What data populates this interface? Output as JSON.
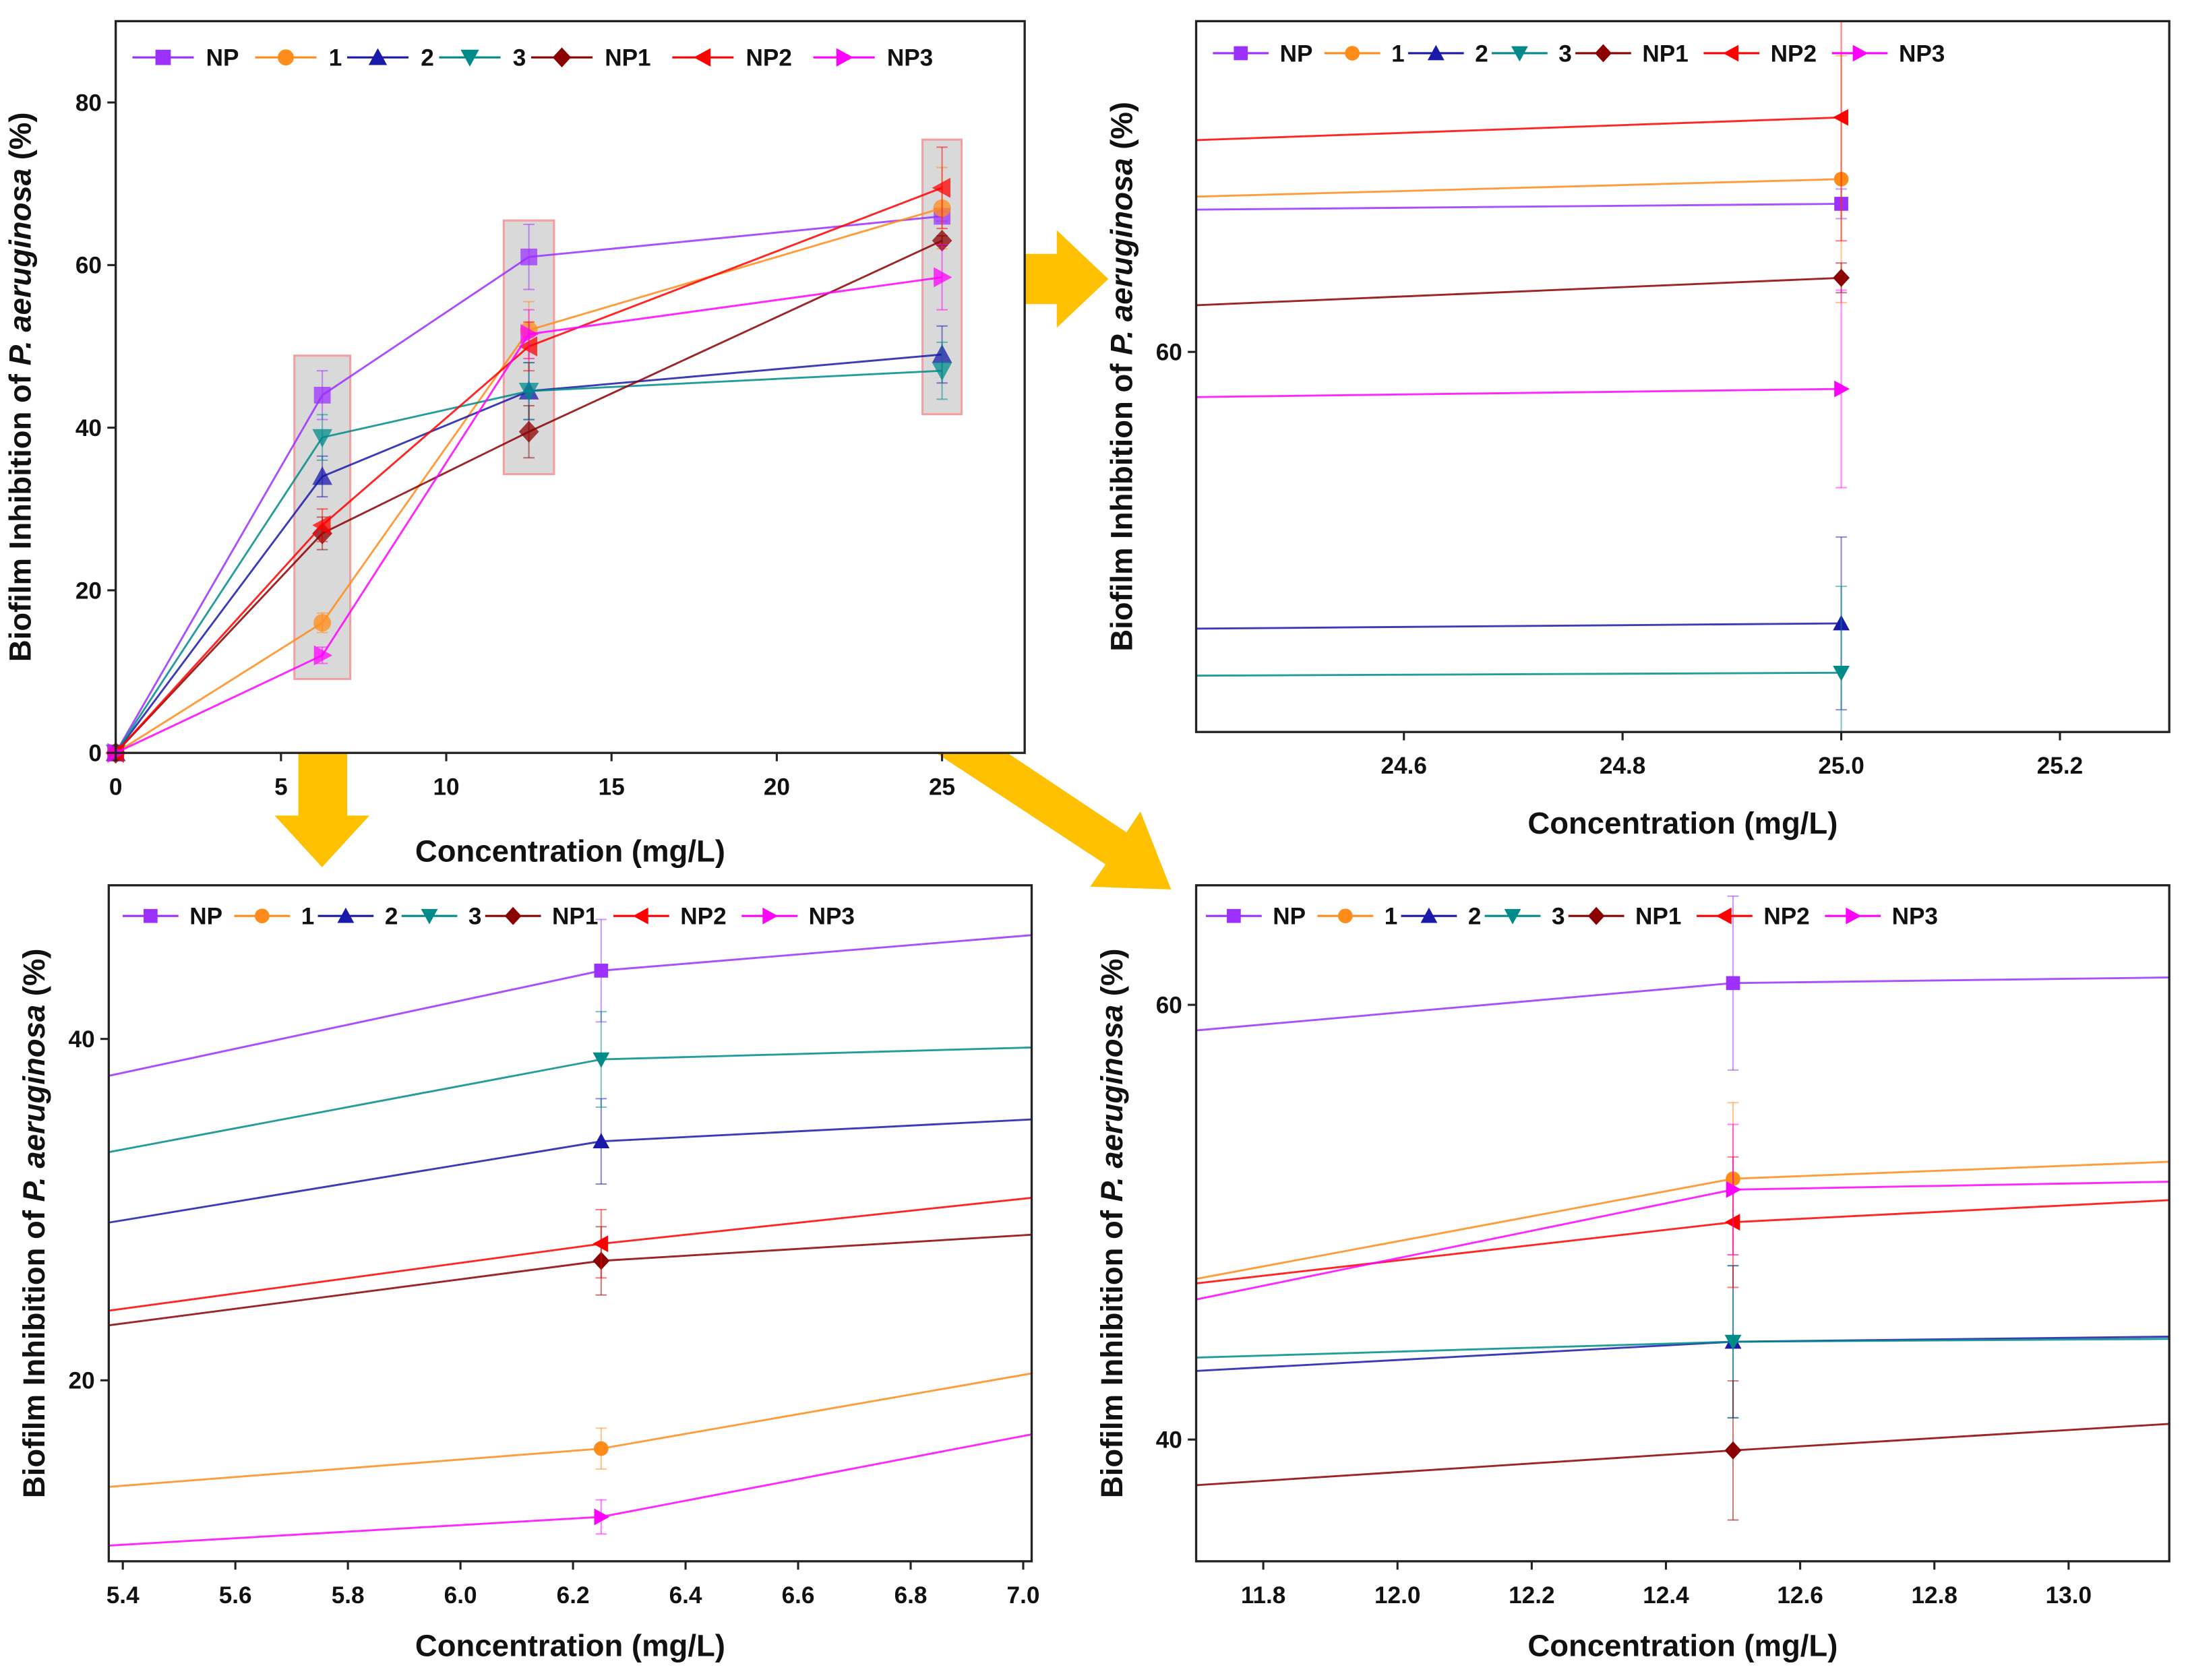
{
  "chart_data": {
    "type": "line",
    "x": [
      0,
      6.25,
      12.5,
      25
    ],
    "series": [
      {
        "name": "NP",
        "values": [
          0,
          44,
          61,
          66
        ],
        "err": [
          0,
          3,
          4,
          0.6
        ],
        "color": "#9b30ff",
        "marker": "square"
      },
      {
        "name": "1",
        "values": [
          0,
          16,
          52,
          67
        ],
        "err": [
          0,
          1.2,
          3.5,
          5
        ],
        "color": "#ff8c1a",
        "marker": "circle"
      },
      {
        "name": "2",
        "values": [
          0,
          34,
          44.5,
          49
        ],
        "err": [
          0,
          2.5,
          3.5,
          3.5
        ],
        "color": "#1a1aaa",
        "marker": "triangle-up"
      },
      {
        "name": "3",
        "values": [
          0,
          38.8,
          44.5,
          47
        ],
        "err": [
          0,
          2.8,
          3.5,
          3.5
        ],
        "color": "#008b8b",
        "marker": "triangle-down"
      },
      {
        "name": "NP1",
        "values": [
          0,
          27,
          39.5,
          63
        ],
        "err": [
          0,
          2,
          3.2,
          0.6
        ],
        "color": "#8b0000",
        "marker": "diamond"
      },
      {
        "name": "NP2",
        "values": [
          0,
          28,
          50,
          69.5
        ],
        "err": [
          0,
          2,
          3,
          5
        ],
        "color": "#ff0000",
        "marker": "triangle-left"
      },
      {
        "name": "NP3",
        "values": [
          0,
          12,
          51.5,
          58.5
        ],
        "err": [
          0,
          1,
          3,
          4
        ],
        "color": "#ff00ff",
        "marker": "triangle-right"
      }
    ],
    "panels": [
      {
        "id": "main",
        "xlabel": "Concentration (mg/L)",
        "ylabel_pre": "Biofilm Inhibition of ",
        "ylabel_italic": "P. aeruginosa",
        "ylabel_post": " (%)",
        "xlim": [
          0,
          27.5
        ],
        "ylim": [
          0,
          90
        ],
        "xticks": [
          "0",
          "5",
          "10",
          "15",
          "20",
          "25"
        ],
        "yticks": [
          "0",
          "20",
          "40",
          "60",
          "80"
        ]
      },
      {
        "id": "zoom-25",
        "xlabel": "Concentration (mg/L)",
        "ylabel_pre": "Biofilm Inhibition of ",
        "ylabel_italic": "P. aeruginosa",
        "ylabel_post": " (%)",
        "xlim": [
          24.41,
          25.3
        ],
        "ylim": [
          44.6,
          73.4
        ],
        "xticks": [
          "24.6",
          "24.8",
          "25.0",
          "25.2"
        ],
        "yticks": [
          "60"
        ]
      },
      {
        "id": "zoom-6.25",
        "xlabel": "Concentration (mg/L)",
        "ylabel_pre": "Biofilm Inhibition of ",
        "ylabel_italic": "P. aeruginosa",
        "ylabel_post": " (%)",
        "xlim": [
          5.375,
          7.015
        ],
        "ylim": [
          9.4,
          49
        ],
        "xticks": [
          "5.4",
          "5.6",
          "5.8",
          "6.0",
          "6.2",
          "6.4",
          "6.6",
          "6.8",
          "7.0"
        ],
        "yticks": [
          "20",
          "40"
        ]
      },
      {
        "id": "zoom-12.5",
        "xlabel": "Concentration (mg/L)",
        "ylabel_pre": "Biofilm Inhibition of ",
        "ylabel_italic": "P. aeruginosa",
        "ylabel_post": " (%)",
        "xlim": [
          11.7,
          13.15
        ],
        "ylim": [
          34.4,
          65.5
        ],
        "xticks": [
          "11.8",
          "12.0",
          "12.2",
          "12.4",
          "12.6",
          "12.8",
          "13.0"
        ],
        "yticks": [
          "40",
          "60"
        ]
      }
    ],
    "highlights_x": [
      6.25,
      12.5,
      25
    ],
    "arrow_color": "#ffc000"
  }
}
